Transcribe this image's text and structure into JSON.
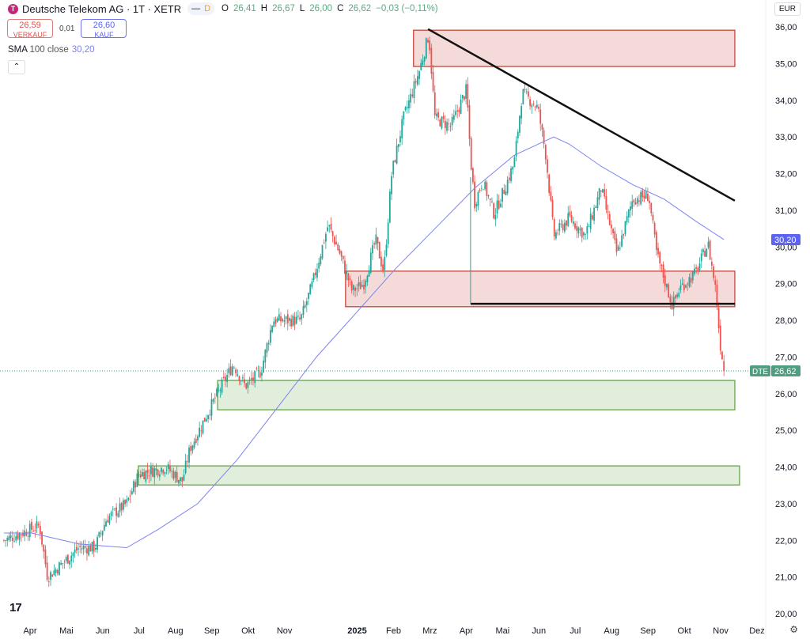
{
  "header": {
    "title": "Deutsche Telekom AG · 1T · XETR",
    "logo_letter": "T",
    "status_dash": "—",
    "status_d": "D",
    "ohlc": [
      {
        "k": "O",
        "v": "26,41"
      },
      {
        "k": "H",
        "v": "26,67"
      },
      {
        "k": "L",
        "v": "26,00"
      },
      {
        "k": "C",
        "v": "26,62"
      }
    ],
    "change": "−0,03 (−0,11%)"
  },
  "trade": {
    "sell_price": "26,59",
    "sell_label": "VERKAUF",
    "spread": "0,01",
    "buy_price": "26,60",
    "buy_label": "KAUF"
  },
  "indicator": {
    "name": "SMA",
    "params": "100 close",
    "value": "30,20"
  },
  "currency": "EUR",
  "colors": {
    "up": "#26a69a",
    "down": "#ef5350",
    "sma": "#7b83ef",
    "zone_red": "#c0392b",
    "zone_green": "#5a9e3a"
  },
  "chart_data": {
    "type": "candlestick",
    "symbol": "DTE",
    "y_ticks": [
      "36,00",
      "35,00",
      "34,00",
      "33,00",
      "32,00",
      "31,00",
      "30,00",
      "29,00",
      "28,00",
      "27,00",
      "26,00",
      "25,00",
      "24,00",
      "23,00",
      "22,00",
      "21,00",
      "20,00"
    ],
    "ylim": [
      20,
      36
    ],
    "x_ticks": [
      {
        "m": 0,
        "l": "Apr"
      },
      {
        "m": 1,
        "l": "Mai"
      },
      {
        "m": 2,
        "l": "Jun"
      },
      {
        "m": 3,
        "l": "Jul"
      },
      {
        "m": 4,
        "l": "Aug"
      },
      {
        "m": 5,
        "l": "Sep"
      },
      {
        "m": 6,
        "l": "Okt"
      },
      {
        "m": 7,
        "l": "Nov"
      },
      {
        "m": 9,
        "l": "2025",
        "bold": true
      },
      {
        "m": 10,
        "l": "Feb"
      },
      {
        "m": 11,
        "l": "Mrz"
      },
      {
        "m": 12,
        "l": "Apr"
      },
      {
        "m": 13,
        "l": "Mai"
      },
      {
        "m": 14,
        "l": "Jun"
      },
      {
        "m": 15,
        "l": "Jul"
      },
      {
        "m": 16,
        "l": "Aug"
      },
      {
        "m": 17,
        "l": "Sep"
      },
      {
        "m": 18,
        "l": "Okt"
      },
      {
        "m": 19,
        "l": "Nov"
      },
      {
        "m": 20,
        "l": "Dez"
      }
    ],
    "price_path": [
      [
        -0.72,
        22.0
      ],
      [
        0.26,
        22.4
      ],
      [
        0.48,
        21.0
      ],
      [
        1.35,
        21.8
      ],
      [
        1.78,
        21.8
      ],
      [
        2.11,
        22.6
      ],
      [
        2.66,
        23.0
      ],
      [
        2.98,
        23.8
      ],
      [
        3.74,
        24.0
      ],
      [
        4.18,
        23.6
      ],
      [
        4.4,
        24.5
      ],
      [
        5.05,
        25.8
      ],
      [
        5.59,
        26.8
      ],
      [
        5.92,
        26.2
      ],
      [
        6.35,
        26.6
      ],
      [
        6.68,
        28.0
      ],
      [
        7.44,
        28.0
      ],
      [
        7.77,
        29.0
      ],
      [
        8.2,
        30.6
      ],
      [
        8.53,
        29.8
      ],
      [
        8.86,
        28.8
      ],
      [
        9.18,
        29.0
      ],
      [
        9.51,
        30.2
      ],
      [
        9.73,
        29.3
      ],
      [
        9.95,
        32.0
      ],
      [
        10.27,
        33.5
      ],
      [
        10.71,
        34.8
      ],
      [
        10.97,
        35.8
      ],
      [
        11.14,
        33.5
      ],
      [
        11.58,
        33.3
      ],
      [
        12.01,
        34.3
      ],
      [
        12.12,
        32.4
      ],
      [
        12.23,
        31.2
      ],
      [
        12.45,
        31.8
      ],
      [
        12.77,
        30.9
      ],
      [
        13.1,
        31.7
      ],
      [
        13.32,
        32.3
      ],
      [
        13.54,
        34.2
      ],
      [
        13.97,
        33.8
      ],
      [
        14.19,
        32.5
      ],
      [
        14.41,
        30.3
      ],
      [
        14.84,
        30.8
      ],
      [
        15.28,
        30.3
      ],
      [
        15.71,
        31.6
      ],
      [
        16.15,
        29.8
      ],
      [
        16.58,
        31.3
      ],
      [
        17.02,
        31.4
      ],
      [
        17.24,
        29.8
      ],
      [
        17.67,
        28.4
      ],
      [
        17.89,
        28.9
      ],
      [
        18.32,
        29.3
      ],
      [
        18.65,
        30.1
      ],
      [
        18.87,
        28.8
      ],
      [
        18.98,
        27.4
      ],
      [
        19.11,
        26.62
      ]
    ],
    "sma100": [
      [
        -0.72,
        22.2
      ],
      [
        0.04,
        22.2
      ],
      [
        1.35,
        21.9
      ],
      [
        2.66,
        21.8
      ],
      [
        3.53,
        22.3
      ],
      [
        4.61,
        23.0
      ],
      [
        5.7,
        24.2
      ],
      [
        6.79,
        25.6
      ],
      [
        7.88,
        27.0
      ],
      [
        8.97,
        28.2
      ],
      [
        10.05,
        29.4
      ],
      [
        11.14,
        30.5
      ],
      [
        12.23,
        31.6
      ],
      [
        13.32,
        32.5
      ],
      [
        14.41,
        33.0
      ],
      [
        14.84,
        32.8
      ],
      [
        15.71,
        32.2
      ],
      [
        16.58,
        31.7
      ],
      [
        17.45,
        31.3
      ],
      [
        18.32,
        30.7
      ],
      [
        19.09,
        30.2
      ]
    ],
    "zones": [
      {
        "kind": "resistance",
        "m0": 10.55,
        "m1": 19.39,
        "p0": 34.92,
        "p1": 35.91
      },
      {
        "kind": "resistance",
        "m0": 8.68,
        "m1": 19.39,
        "p0": 28.37,
        "p1": 29.34
      },
      {
        "kind": "support",
        "m0": 5.16,
        "m1": 19.39,
        "p0": 25.56,
        "p1": 26.36
      },
      {
        "kind": "support",
        "m0": 2.98,
        "m1": 19.52,
        "p0": 23.51,
        "p1": 24.03
      }
    ],
    "trendlines": [
      {
        "m0": 10.95,
        "p0": 35.94,
        "m1": 19.39,
        "p1": 31.26
      },
      {
        "m0": 12.12,
        "p0": 28.45,
        "m1": 19.39,
        "p1": 28.45
      }
    ],
    "last_price": 26.62,
    "last_label": "26,62",
    "sma_label": "30,20"
  }
}
